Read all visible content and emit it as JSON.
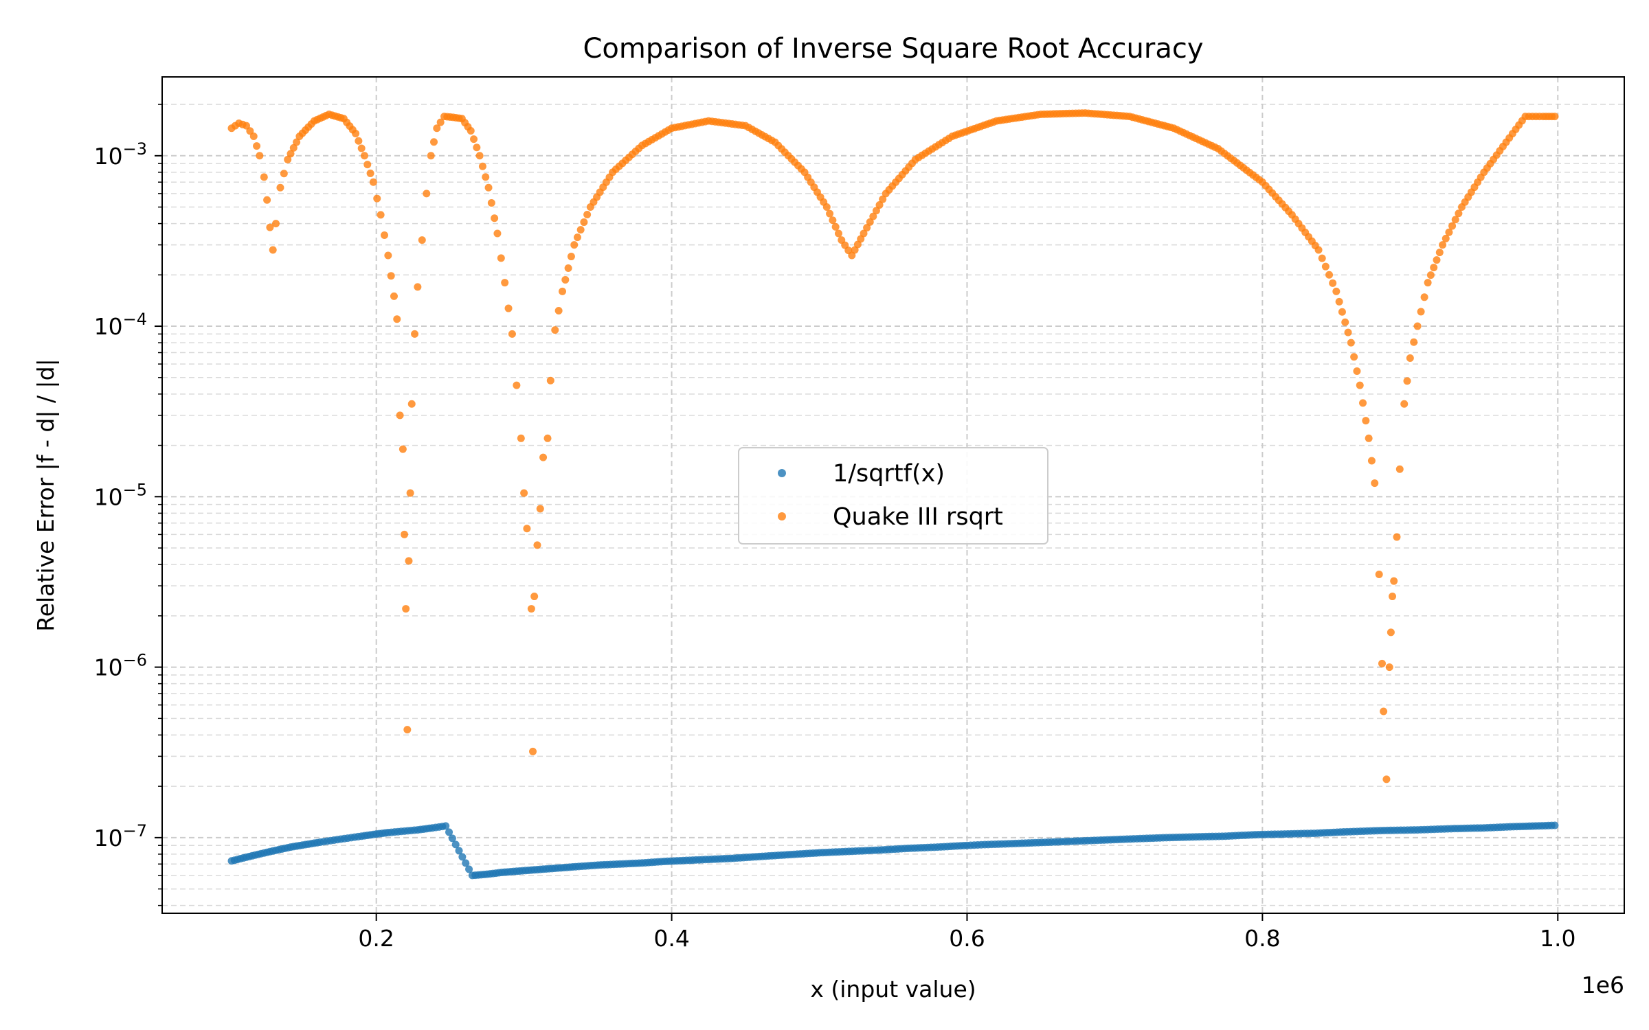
{
  "chart_data": {
    "type": "scatter",
    "title": "Comparison of Inverse Square Root Accuracy",
    "xlabel": "x (input value)",
    "ylabel": "Relative Error |f - d| / |d|",
    "x_offset_label": "1e6",
    "x_scale_factor": 1000000,
    "x_ticks": [
      {
        "value": 200000,
        "label": "0.2"
      },
      {
        "value": 400000,
        "label": "0.4"
      },
      {
        "value": 600000,
        "label": "0.6"
      },
      {
        "value": 800000,
        "label": "0.8"
      },
      {
        "value": 1000000,
        "label": "1.0"
      }
    ],
    "y_ticks": [
      {
        "value": 1e-07,
        "base": "10",
        "exp": "−7"
      },
      {
        "value": 1e-06,
        "base": "10",
        "exp": "−6"
      },
      {
        "value": 1e-05,
        "base": "10",
        "exp": "−5"
      },
      {
        "value": 0.0001,
        "base": "10",
        "exp": "−4"
      },
      {
        "value": 0.001,
        "base": "10",
        "exp": "−3"
      }
    ],
    "xlim": [
      55000,
      1045000
    ],
    "ylim": [
      3.6e-08,
      0.0029
    ],
    "yscale": "log",
    "grid": true,
    "legend_position": "center",
    "colors": {
      "series1": "#1f77b4",
      "series2": "#ff7f0e"
    },
    "series": [
      {
        "name": "1/sqrtf(x)",
        "points": [
          [
            102000,
            7.3e-08
          ],
          [
            110000,
            7.6e-08
          ],
          [
            118000,
            7.9e-08
          ],
          [
            126000,
            8.2e-08
          ],
          [
            134000,
            8.5e-08
          ],
          [
            142000,
            8.8e-08
          ],
          [
            152000,
            9.1e-08
          ],
          [
            162000,
            9.4e-08
          ],
          [
            176000,
            9.8e-08
          ],
          [
            190000,
            1.02e-07
          ],
          [
            200000,
            1.05e-07
          ],
          [
            208000,
            1.07e-07
          ],
          [
            228000,
            1.11e-07
          ],
          [
            238000,
            1.14e-07
          ],
          [
            247000,
            1.17e-07
          ],
          [
            265000,
            6e-08
          ],
          [
            275000,
            6.1e-08
          ],
          [
            285000,
            6.25e-08
          ],
          [
            295000,
            6.35e-08
          ],
          [
            305000,
            6.45e-08
          ],
          [
            315000,
            6.55e-08
          ],
          [
            325000,
            6.65e-08
          ],
          [
            335000,
            6.75e-08
          ],
          [
            350000,
            6.9e-08
          ],
          [
            365000,
            7e-08
          ],
          [
            380000,
            7.1e-08
          ],
          [
            395000,
            7.25e-08
          ],
          [
            410000,
            7.35e-08
          ],
          [
            425000,
            7.45e-08
          ],
          [
            440000,
            7.55e-08
          ],
          [
            455000,
            7.7e-08
          ],
          [
            470000,
            7.85e-08
          ],
          [
            485000,
            8e-08
          ],
          [
            500000,
            8.15e-08
          ],
          [
            520000,
            8.3e-08
          ],
          [
            540000,
            8.45e-08
          ],
          [
            560000,
            8.65e-08
          ],
          [
            580000,
            8.8e-08
          ],
          [
            600000,
            9e-08
          ],
          [
            612000,
            9.1e-08
          ],
          [
            635000,
            9.25e-08
          ],
          [
            655000,
            9.4e-08
          ],
          [
            675000,
            9.55e-08
          ],
          [
            695000,
            9.7e-08
          ],
          [
            715000,
            9.85e-08
          ],
          [
            735000,
            1e-07
          ],
          [
            755000,
            1.01e-07
          ],
          [
            775000,
            1.02e-07
          ],
          [
            795000,
            1.04e-07
          ],
          [
            815000,
            1.05e-07
          ],
          [
            835000,
            1.06e-07
          ],
          [
            855000,
            1.08e-07
          ],
          [
            880000,
            1.1e-07
          ],
          [
            905000,
            1.11e-07
          ],
          [
            930000,
            1.13e-07
          ],
          [
            950000,
            1.14e-07
          ],
          [
            970000,
            1.16e-07
          ],
          [
            985000,
            1.17e-07
          ],
          [
            998000,
            1.18e-07
          ]
        ]
      },
      {
        "name": "Quake III rsqrt",
        "points": [
          [
            102000,
            0.00145
          ],
          [
            107000,
            0.00155
          ],
          [
            112000,
            0.0015
          ],
          [
            117000,
            0.0013
          ],
          [
            121000,
            0.001
          ],
          [
            124000,
            0.00075
          ],
          [
            126000,
            0.00055
          ],
          [
            128000,
            0.00038
          ],
          [
            130000,
            0.00028
          ],
          [
            132000,
            0.0004
          ],
          [
            135000,
            0.00065
          ],
          [
            140000,
            0.00095
          ],
          [
            148000,
            0.0013
          ],
          [
            158000,
            0.0016
          ],
          [
            168000,
            0.00175
          ],
          [
            178000,
            0.00165
          ],
          [
            186000,
            0.00135
          ],
          [
            192000,
            0.001
          ],
          [
            198000,
            0.0007
          ],
          [
            203000,
            0.00045
          ],
          [
            208000,
            0.00026
          ],
          [
            212000,
            0.00015
          ],
          [
            214000,
            0.00011
          ],
          [
            216000,
            3e-05
          ],
          [
            218000,
            1.9e-05
          ],
          [
            219000,
            6e-06
          ],
          [
            220000,
            2.2e-06
          ],
          [
            221000,
            4.3e-07
          ],
          [
            222000,
            4.2e-06
          ],
          [
            223000,
            1.05e-05
          ],
          [
            224000,
            3.5e-05
          ],
          [
            226000,
            9e-05
          ],
          [
            228000,
            0.00017
          ],
          [
            231000,
            0.00032
          ],
          [
            234000,
            0.0006
          ],
          [
            237000,
            0.001
          ],
          [
            241000,
            0.00145
          ],
          [
            246000,
            0.0017
          ],
          [
            252000,
            0.00168
          ],
          [
            258000,
            0.00165
          ],
          [
            264000,
            0.0014
          ],
          [
            270000,
            0.001
          ],
          [
            276000,
            0.00065
          ],
          [
            282000,
            0.00035
          ],
          [
            287000,
            0.00018
          ],
          [
            292000,
            9e-05
          ],
          [
            295000,
            4.5e-05
          ],
          [
            298000,
            2.2e-05
          ],
          [
            300000,
            1.05e-05
          ],
          [
            302000,
            6.5e-06
          ],
          [
            305000,
            2.2e-06
          ],
          [
            306000,
            3.2e-07
          ],
          [
            307000,
            2.6e-06
          ],
          [
            309000,
            5.2e-06
          ],
          [
            311000,
            8.5e-06
          ],
          [
            313000,
            1.7e-05
          ],
          [
            316000,
            2.2e-05
          ],
          [
            318000,
            4.8e-05
          ],
          [
            321000,
            9.5e-05
          ],
          [
            326000,
            0.00016
          ],
          [
            334000,
            0.0003
          ],
          [
            345000,
            0.0005
          ],
          [
            360000,
            0.0008
          ],
          [
            380000,
            0.00115
          ],
          [
            400000,
            0.00145
          ],
          [
            425000,
            0.0016
          ],
          [
            450000,
            0.0015
          ],
          [
            470000,
            0.0012
          ],
          [
            490000,
            0.0008
          ],
          [
            505000,
            0.0005
          ],
          [
            515000,
            0.00032
          ],
          [
            522000,
            0.00026
          ],
          [
            530000,
            0.00035
          ],
          [
            545000,
            0.0006
          ],
          [
            565000,
            0.00095
          ],
          [
            590000,
            0.0013
          ],
          [
            620000,
            0.0016
          ],
          [
            650000,
            0.00175
          ],
          [
            680000,
            0.00178
          ],
          [
            710000,
            0.0017
          ],
          [
            740000,
            0.00145
          ],
          [
            770000,
            0.0011
          ],
          [
            800000,
            0.0007
          ],
          [
            820000,
            0.00045
          ],
          [
            838000,
            0.00028
          ],
          [
            850000,
            0.00016
          ],
          [
            860000,
            8e-05
          ],
          [
            866000,
            4.5e-05
          ],
          [
            872000,
            2.2e-05
          ],
          [
            876000,
            1.2e-05
          ],
          [
            879000,
            3.5e-06
          ],
          [
            881000,
            1.05e-06
          ],
          [
            882000,
            5.5e-07
          ],
          [
            884000,
            2.2e-07
          ],
          [
            886000,
            1e-06
          ],
          [
            887000,
            1.6e-06
          ],
          [
            888000,
            2.6e-06
          ],
          [
            889000,
            3.2e-06
          ],
          [
            891000,
            5.8e-06
          ],
          [
            893000,
            1.45e-05
          ],
          [
            896000,
            3.5e-05
          ],
          [
            900000,
            6.5e-05
          ],
          [
            905000,
            0.0001
          ],
          [
            912000,
            0.00018
          ],
          [
            922000,
            0.0003
          ],
          [
            935000,
            0.0005
          ],
          [
            950000,
            0.0008
          ],
          [
            965000,
            0.0012
          ],
          [
            978000,
            0.0017
          ],
          [
            990000,
            0.0017
          ],
          [
            998000,
            0.0017
          ]
        ]
      }
    ]
  }
}
